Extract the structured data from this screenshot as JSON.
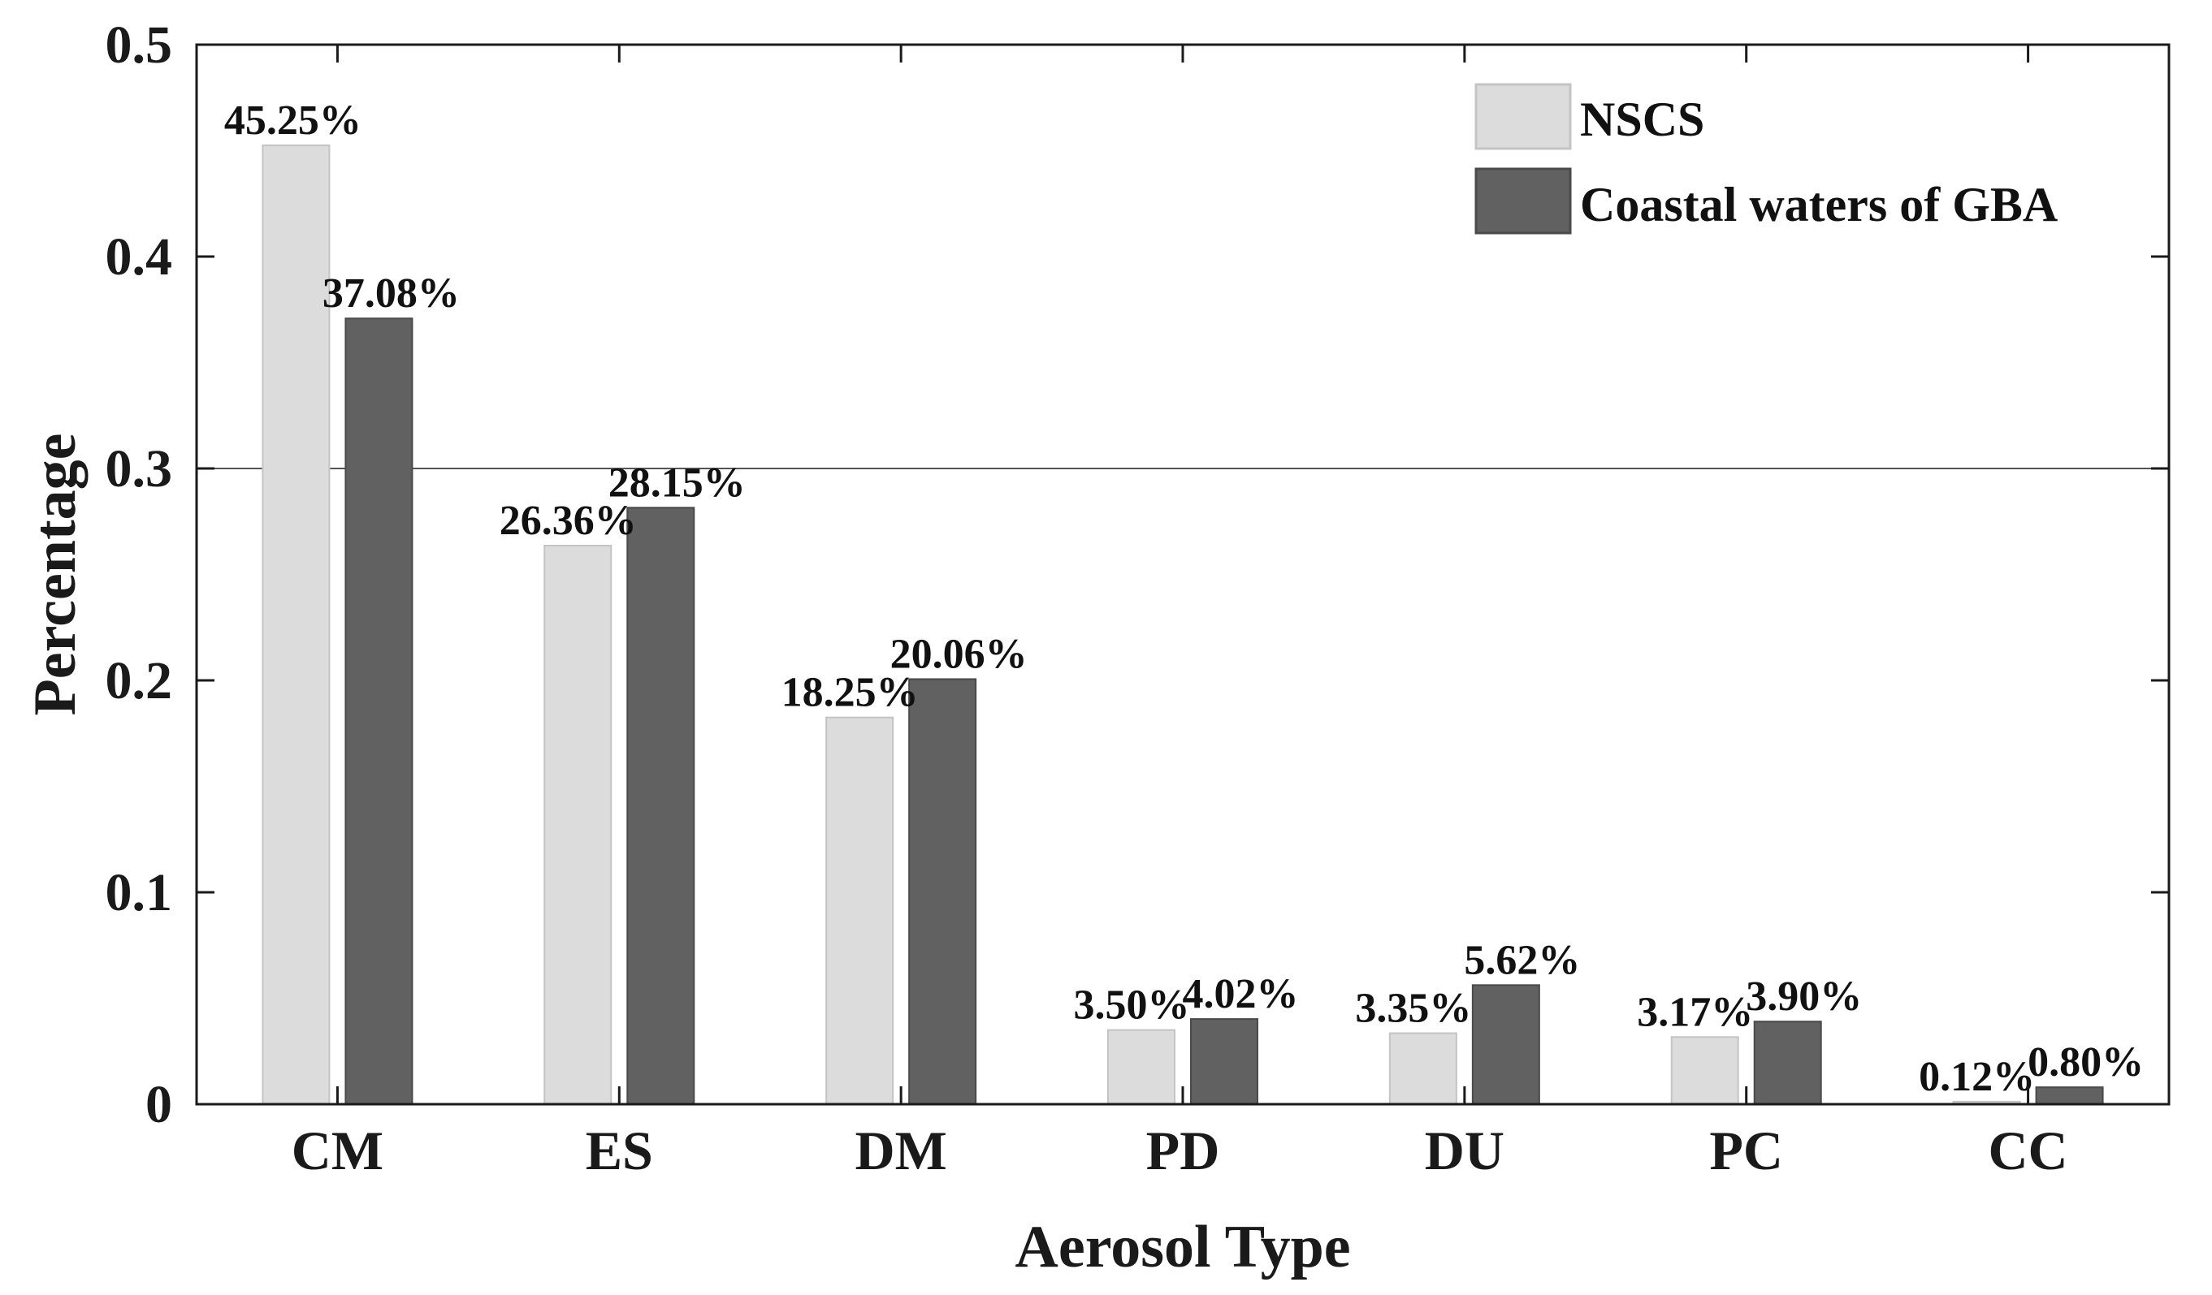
{
  "chart_data": {
    "type": "bar",
    "title": "",
    "xlabel": "Aerosol Type",
    "ylabel": "Percentage",
    "ylim": [
      0,
      0.5
    ],
    "yticks": [
      0,
      0.1,
      0.2,
      0.3,
      0.4,
      0.5
    ],
    "ytick_labels": [
      "0",
      "0.1",
      "0.2",
      "0.3",
      "0.4",
      "0.5"
    ],
    "categories": [
      "CM",
      "ES",
      "DM",
      "PD",
      "DU",
      "PC",
      "CC"
    ],
    "legend_position": "top-right",
    "reference_line": 0.3,
    "series": [
      {
        "name": "NSCS",
        "color": "#dcdcdc",
        "edge": "#c4c4c4",
        "values": [
          0.4525,
          0.2636,
          0.1825,
          0.035,
          0.0335,
          0.0317,
          0.0012
        ],
        "labels": [
          "45.25%",
          "26.36%",
          "18.25%",
          "3.50%",
          "3.35%",
          "3.17%",
          "0.12%"
        ]
      },
      {
        "name": "Coastal waters of GBA",
        "color": "#616161",
        "edge": "#4a4a4a",
        "values": [
          0.3708,
          0.2815,
          0.2006,
          0.0402,
          0.0562,
          0.039,
          0.008
        ],
        "labels": [
          "37.08%",
          "28.15%",
          "20.06%",
          "4.02%",
          "5.62%",
          "3.90%",
          "0.80%"
        ]
      }
    ]
  }
}
